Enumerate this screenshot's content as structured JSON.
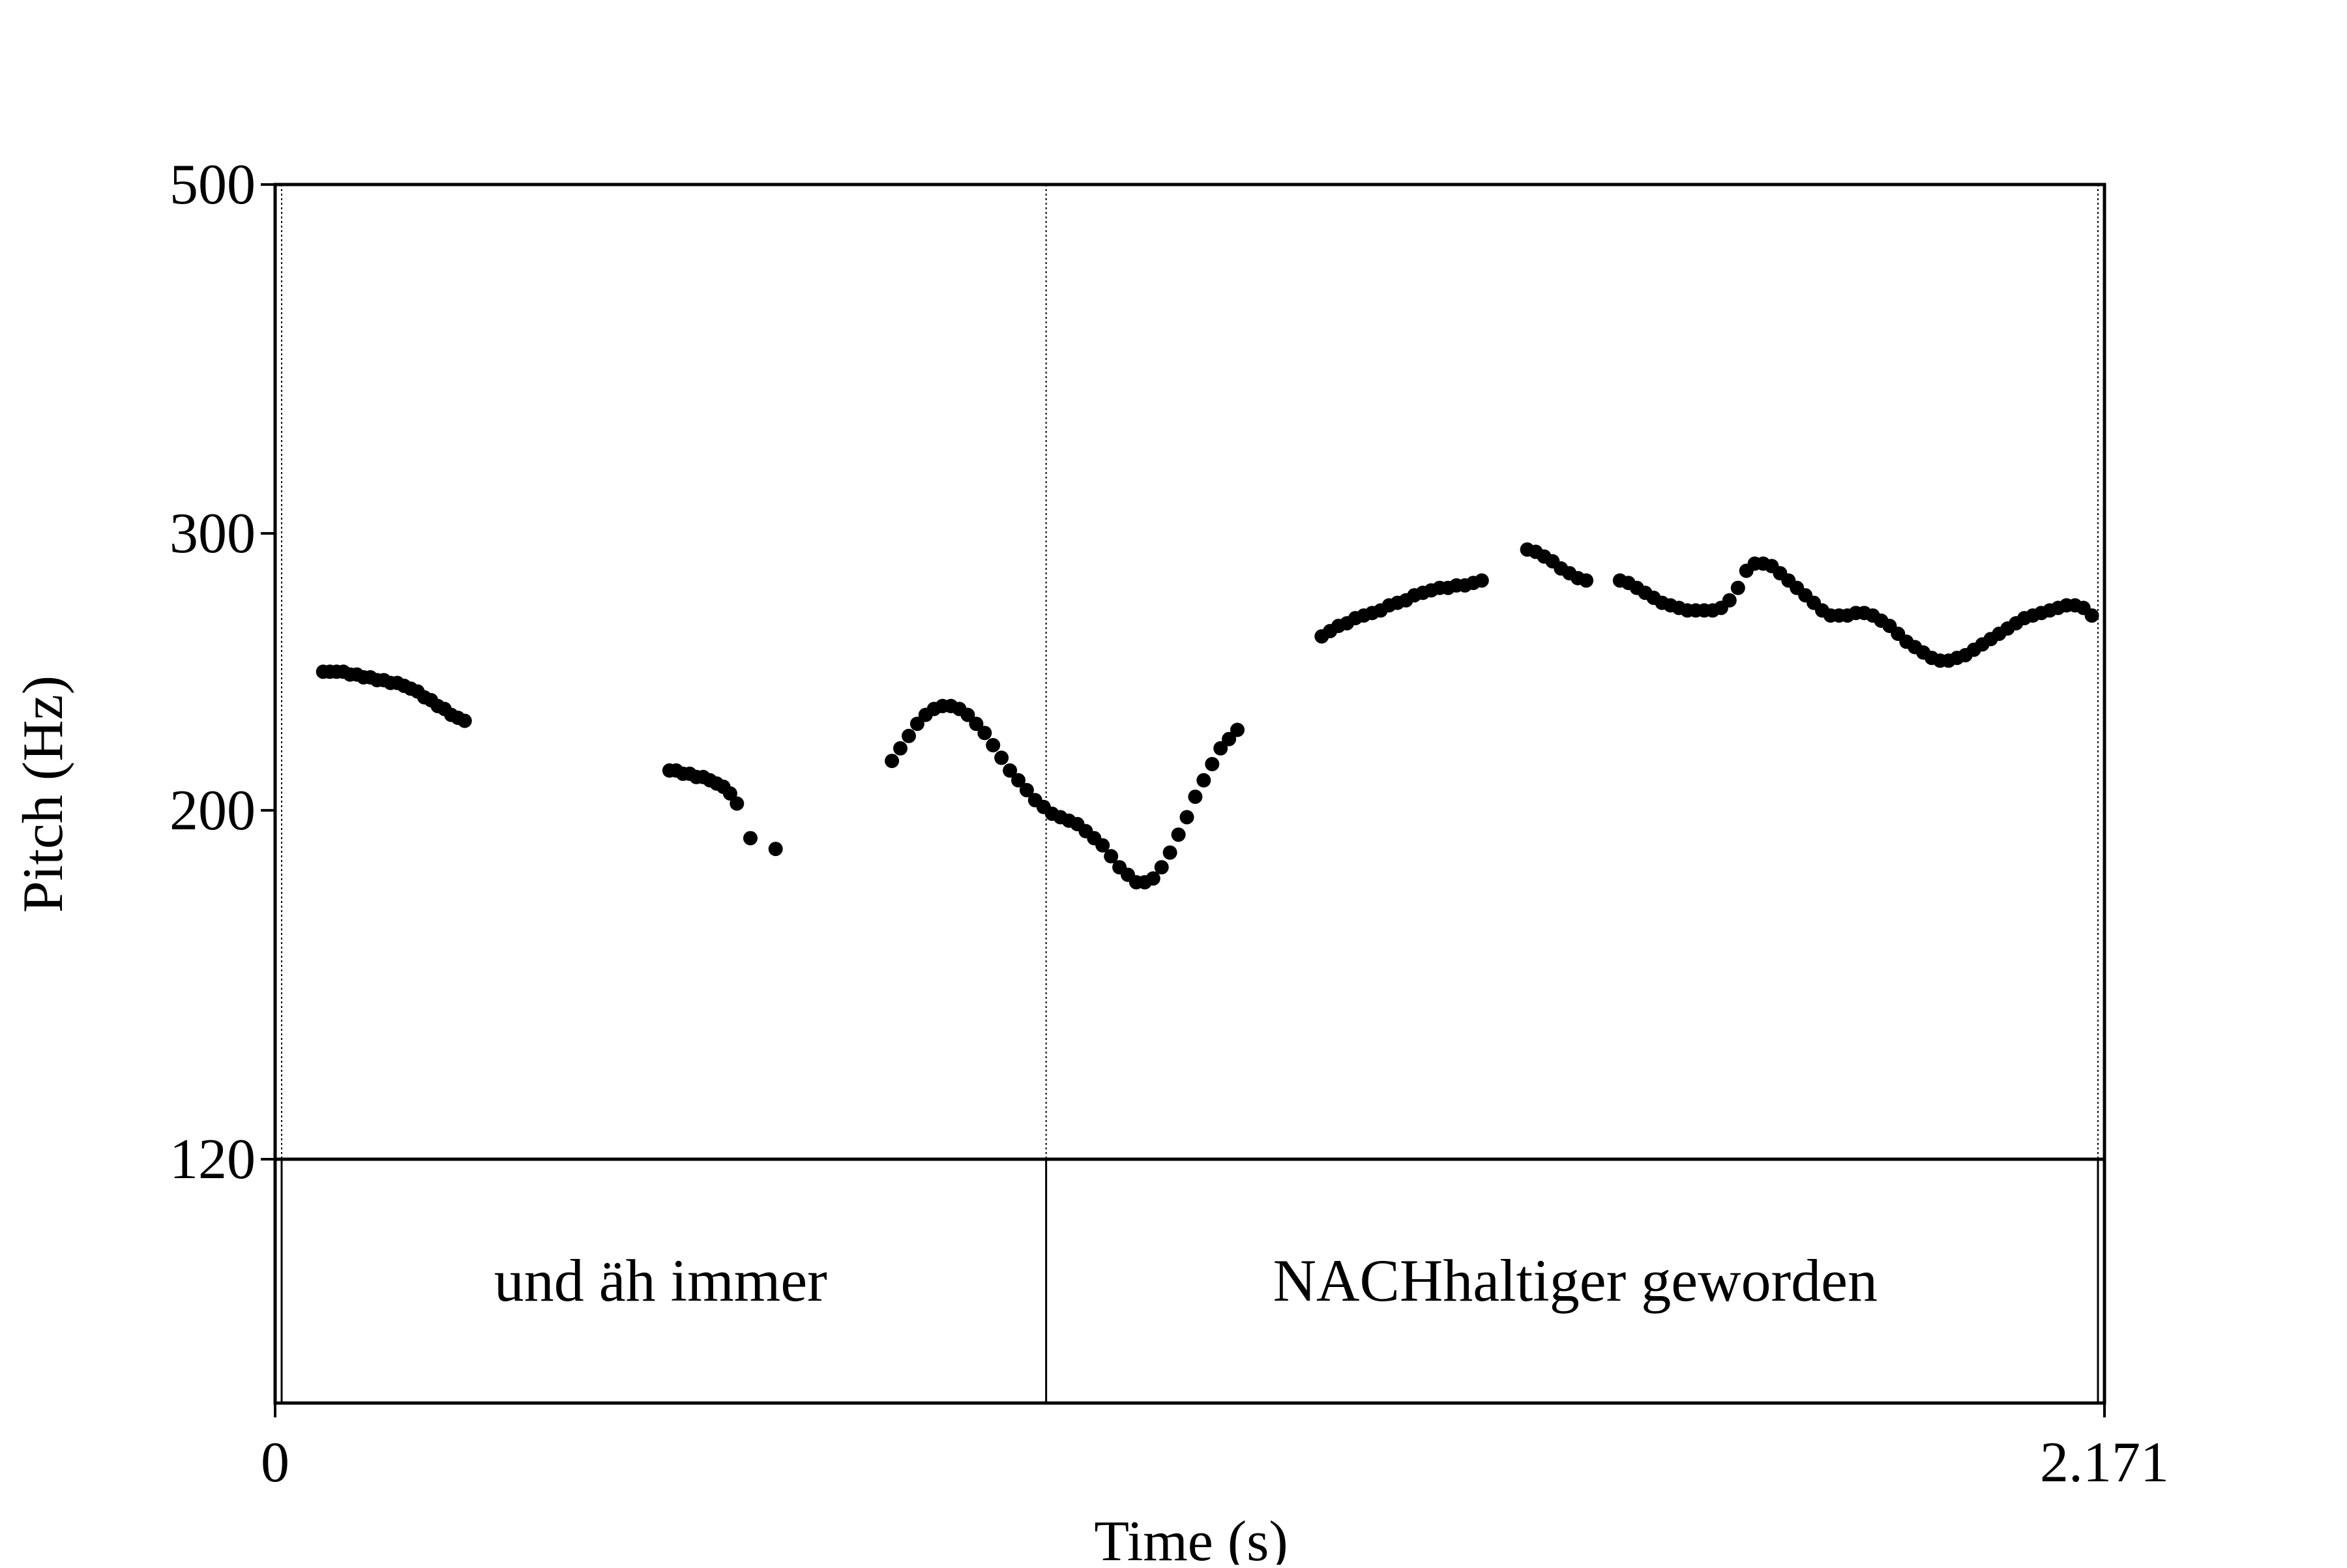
{
  "chart_data": {
    "type": "scatter",
    "xlabel": "Time (s)",
    "ylabel": "Pitch (Hz)",
    "xlim": [
      0,
      2.171
    ],
    "ylim": [
      120,
      500
    ],
    "y_scale": "log",
    "x_ticks": [
      {
        "value": 0,
        "label": "0"
      },
      {
        "value": 2.171,
        "label": "2.171"
      }
    ],
    "y_ticks": [
      {
        "value": 120,
        "label": "120"
      },
      {
        "value": 200,
        "label": "200"
      },
      {
        "value": 300,
        "label": "300"
      },
      {
        "value": 500,
        "label": "500"
      }
    ],
    "grid": false,
    "marker_color": "#000000",
    "tier": {
      "boundaries": [
        0,
        0.915,
        2.171
      ],
      "intervals": [
        {
          "start": 0,
          "end": 0.915,
          "label": "und äh immer"
        },
        {
          "start": 0.915,
          "end": 2.171,
          "label": "NACHhaltiger geworden"
        }
      ]
    },
    "series": [
      {
        "points": [
          [
            0.057,
            245
          ],
          [
            0.065,
            245
          ],
          [
            0.073,
            245
          ],
          [
            0.081,
            245
          ],
          [
            0.089,
            244
          ],
          [
            0.097,
            244
          ],
          [
            0.105,
            243
          ],
          [
            0.113,
            243
          ],
          [
            0.121,
            242
          ],
          [
            0.129,
            242
          ],
          [
            0.137,
            241
          ],
          [
            0.145,
            241
          ],
          [
            0.153,
            240
          ],
          [
            0.161,
            239
          ],
          [
            0.169,
            238
          ],
          [
            0.177,
            236
          ],
          [
            0.185,
            235
          ],
          [
            0.193,
            233
          ],
          [
            0.201,
            232
          ],
          [
            0.209,
            230
          ],
          [
            0.217,
            229
          ],
          [
            0.225,
            228
          ],
          [
            0.468,
            212
          ],
          [
            0.476,
            212
          ],
          [
            0.484,
            211
          ],
          [
            0.492,
            211
          ],
          [
            0.5,
            210
          ],
          [
            0.508,
            210
          ],
          [
            0.516,
            209
          ],
          [
            0.524,
            208
          ],
          [
            0.532,
            207
          ],
          [
            0.54,
            205
          ],
          [
            0.548,
            202
          ],
          [
            0.564,
            192
          ],
          [
            0.594,
            189
          ],
          [
            0.732,
            215
          ],
          [
            0.742,
            219
          ],
          [
            0.752,
            223
          ],
          [
            0.762,
            227
          ],
          [
            0.772,
            230
          ],
          [
            0.782,
            232
          ],
          [
            0.792,
            233
          ],
          [
            0.802,
            233
          ],
          [
            0.812,
            232
          ],
          [
            0.822,
            230
          ],
          [
            0.832,
            227
          ],
          [
            0.842,
            224
          ],
          [
            0.852,
            220
          ],
          [
            0.862,
            216
          ],
          [
            0.872,
            212
          ],
          [
            0.882,
            209
          ],
          [
            0.892,
            206
          ],
          [
            0.902,
            203
          ],
          [
            0.912,
            201
          ],
          [
            0.922,
            199
          ],
          [
            0.932,
            198
          ],
          [
            0.942,
            197
          ],
          [
            0.952,
            196
          ],
          [
            0.962,
            194
          ],
          [
            0.972,
            192
          ],
          [
            0.982,
            190
          ],
          [
            0.992,
            187
          ],
          [
            1.002,
            184
          ],
          [
            1.012,
            182
          ],
          [
            1.022,
            180
          ],
          [
            1.032,
            180
          ],
          [
            1.042,
            181
          ],
          [
            1.052,
            184
          ],
          [
            1.062,
            188
          ],
          [
            1.072,
            193
          ],
          [
            1.082,
            198
          ],
          [
            1.092,
            204
          ],
          [
            1.102,
            209
          ],
          [
            1.112,
            214
          ],
          [
            1.122,
            219
          ],
          [
            1.132,
            222
          ],
          [
            1.142,
            225
          ],
          [
            1.242,
            258
          ],
          [
            1.252,
            260
          ],
          [
            1.262,
            262
          ],
          [
            1.272,
            263
          ],
          [
            1.282,
            265
          ],
          [
            1.292,
            266
          ],
          [
            1.302,
            267
          ],
          [
            1.312,
            268
          ],
          [
            1.322,
            270
          ],
          [
            1.332,
            271
          ],
          [
            1.342,
            272
          ],
          [
            1.352,
            274
          ],
          [
            1.362,
            275
          ],
          [
            1.372,
            276
          ],
          [
            1.382,
            277
          ],
          [
            1.392,
            277
          ],
          [
            1.402,
            278
          ],
          [
            1.412,
            278
          ],
          [
            1.422,
            279
          ],
          [
            1.432,
            280
          ],
          [
            1.486,
            293
          ],
          [
            1.496,
            292
          ],
          [
            1.506,
            290
          ],
          [
            1.516,
            288
          ],
          [
            1.526,
            285
          ],
          [
            1.536,
            283
          ],
          [
            1.546,
            281
          ],
          [
            1.556,
            280
          ],
          [
            1.596,
            280
          ],
          [
            1.606,
            279
          ],
          [
            1.616,
            277
          ],
          [
            1.626,
            275
          ],
          [
            1.636,
            273
          ],
          [
            1.646,
            271
          ],
          [
            1.656,
            270
          ],
          [
            1.666,
            269
          ],
          [
            1.676,
            268
          ],
          [
            1.686,
            268
          ],
          [
            1.696,
            268
          ],
          [
            1.706,
            268
          ],
          [
            1.716,
            269
          ],
          [
            1.726,
            272
          ],
          [
            1.736,
            277
          ],
          [
            1.746,
            284
          ],
          [
            1.756,
            287
          ],
          [
            1.766,
            287
          ],
          [
            1.776,
            286
          ],
          [
            1.786,
            283
          ],
          [
            1.796,
            280
          ],
          [
            1.806,
            277
          ],
          [
            1.816,
            274
          ],
          [
            1.826,
            271
          ],
          [
            1.836,
            268
          ],
          [
            1.846,
            266
          ],
          [
            1.856,
            266
          ],
          [
            1.866,
            266
          ],
          [
            1.876,
            267
          ],
          [
            1.886,
            267
          ],
          [
            1.896,
            266
          ],
          [
            1.906,
            264
          ],
          [
            1.916,
            262
          ],
          [
            1.926,
            259
          ],
          [
            1.936,
            256
          ],
          [
            1.946,
            254
          ],
          [
            1.956,
            252
          ],
          [
            1.966,
            250
          ],
          [
            1.976,
            249
          ],
          [
            1.986,
            249
          ],
          [
            1.996,
            250
          ],
          [
            2.006,
            251
          ],
          [
            2.016,
            253
          ],
          [
            2.026,
            255
          ],
          [
            2.036,
            257
          ],
          [
            2.046,
            259
          ],
          [
            2.056,
            261
          ],
          [
            2.066,
            263
          ],
          [
            2.076,
            265
          ],
          [
            2.086,
            266
          ],
          [
            2.096,
            267
          ],
          [
            2.106,
            268
          ],
          [
            2.116,
            269
          ],
          [
            2.126,
            270
          ],
          [
            2.136,
            270
          ],
          [
            2.146,
            269
          ],
          [
            2.156,
            266
          ]
        ]
      }
    ]
  }
}
